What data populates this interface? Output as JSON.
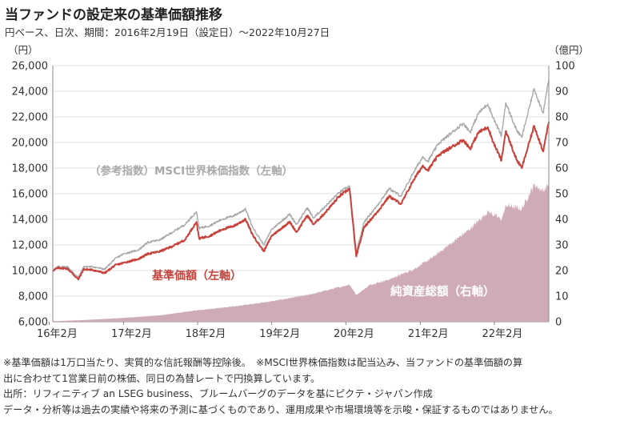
{
  "title": "当ファンドの設定来の基準価額推移",
  "subtitle": "円ベース、日次、期間：2016年2月19日（設定日）～2022年10月27日",
  "chart_data": {
    "type": "line",
    "left_unit": "（円）",
    "right_unit": "（億円）",
    "y_left": {
      "min": 6000,
      "max": 26000,
      "ticks": [
        "6,000",
        "8,000",
        "10,000",
        "12,000",
        "14,000",
        "16,000",
        "18,000",
        "20,000",
        "22,000",
        "24,000",
        "26,000"
      ]
    },
    "y_right": {
      "min": 0,
      "max": 100,
      "ticks": [
        "0",
        "10",
        "20",
        "30",
        "40",
        "50",
        "60",
        "70",
        "80",
        "90",
        "100"
      ]
    },
    "x_ticks": [
      "16年2月",
      "17年2月",
      "18年2月",
      "19年2月",
      "20年2月",
      "21年2月",
      "22年2月"
    ],
    "x_range": [
      "2016-02-19",
      "2022-10-27"
    ],
    "series": [
      {
        "name": "基準価額（左軸）",
        "axis": "left",
        "color": "#c8413a",
        "points": [
          [
            "2016-02-19",
            10000
          ],
          [
            "2016-03-15",
            10200
          ],
          [
            "2016-05-01",
            10150
          ],
          [
            "2016-06-24",
            9300
          ],
          [
            "2016-07-20",
            10100
          ],
          [
            "2016-09-01",
            10050
          ],
          [
            "2016-11-01",
            9800
          ],
          [
            "2016-12-20",
            10400
          ],
          [
            "2017-02-01",
            10600
          ],
          [
            "2017-04-15",
            10900
          ],
          [
            "2017-06-01",
            11300
          ],
          [
            "2017-08-01",
            11500
          ],
          [
            "2017-10-01",
            11900
          ],
          [
            "2017-12-01",
            12400
          ],
          [
            "2018-01-26",
            13800
          ],
          [
            "2018-02-09",
            12500
          ],
          [
            "2018-04-01",
            12700
          ],
          [
            "2018-06-01",
            13200
          ],
          [
            "2018-08-01",
            13500
          ],
          [
            "2018-09-25",
            14000
          ],
          [
            "2018-10-29",
            12800
          ],
          [
            "2018-12-24",
            11500
          ],
          [
            "2019-01-31",
            12700
          ],
          [
            "2019-04-30",
            13800
          ],
          [
            "2019-06-03",
            13000
          ],
          [
            "2019-07-26",
            14300
          ],
          [
            "2019-08-26",
            13600
          ],
          [
            "2019-10-15",
            14400
          ],
          [
            "2019-12-31",
            15800
          ],
          [
            "2020-02-19",
            16400
          ],
          [
            "2020-03-23",
            11100
          ],
          [
            "2020-05-01",
            13400
          ],
          [
            "2020-07-01",
            14500
          ],
          [
            "2020-09-01",
            15800
          ],
          [
            "2020-10-30",
            15200
          ],
          [
            "2020-12-31",
            17100
          ],
          [
            "2021-02-15",
            18200
          ],
          [
            "2021-03-10",
            17800
          ],
          [
            "2021-05-01",
            19000
          ],
          [
            "2021-07-01",
            19600
          ],
          [
            "2021-09-01",
            20200
          ],
          [
            "2021-10-05",
            19500
          ],
          [
            "2021-11-15",
            20800
          ],
          [
            "2021-12-31",
            21200
          ],
          [
            "2022-01-27",
            20000
          ],
          [
            "2022-03-08",
            18600
          ],
          [
            "2022-03-29",
            20900
          ],
          [
            "2022-05-20",
            18700
          ],
          [
            "2022-06-16",
            18000
          ],
          [
            "2022-08-16",
            21300
          ],
          [
            "2022-09-29",
            19300
          ],
          [
            "2022-10-27",
            21600
          ]
        ]
      },
      {
        "name": "（参考指数）MSCI世界株価指数（左軸）",
        "axis": "left",
        "color": "#a9a9a9",
        "points": [
          [
            "2016-02-19",
            10000
          ],
          [
            "2016-03-15",
            10300
          ],
          [
            "2016-05-01",
            10300
          ],
          [
            "2016-06-24",
            9450
          ],
          [
            "2016-07-20",
            10300
          ],
          [
            "2016-09-01",
            10300
          ],
          [
            "2016-11-01",
            10100
          ],
          [
            "2016-12-20",
            10900
          ],
          [
            "2017-02-01",
            11300
          ],
          [
            "2017-04-15",
            11600
          ],
          [
            "2017-06-01",
            12200
          ],
          [
            "2017-08-01",
            12400
          ],
          [
            "2017-10-01",
            13000
          ],
          [
            "2017-12-01",
            13600
          ],
          [
            "2018-01-26",
            14600
          ],
          [
            "2018-02-09",
            13300
          ],
          [
            "2018-04-01",
            13500
          ],
          [
            "2018-06-01",
            14000
          ],
          [
            "2018-08-01",
            14300
          ],
          [
            "2018-09-25",
            14800
          ],
          [
            "2018-10-29",
            13400
          ],
          [
            "2018-12-24",
            12000
          ],
          [
            "2019-01-31",
            13200
          ],
          [
            "2019-04-30",
            14400
          ],
          [
            "2019-06-03",
            13600
          ],
          [
            "2019-07-26",
            14900
          ],
          [
            "2019-08-26",
            14100
          ],
          [
            "2019-10-15",
            14900
          ],
          [
            "2019-12-31",
            16100
          ],
          [
            "2020-02-19",
            16600
          ],
          [
            "2020-03-23",
            11400
          ],
          [
            "2020-05-01",
            13800
          ],
          [
            "2020-07-01",
            15000
          ],
          [
            "2020-09-01",
            16400
          ],
          [
            "2020-10-30",
            15800
          ],
          [
            "2020-12-31",
            17700
          ],
          [
            "2021-02-15",
            18900
          ],
          [
            "2021-03-10",
            18500
          ],
          [
            "2021-05-01",
            19900
          ],
          [
            "2021-07-01",
            20700
          ],
          [
            "2021-09-01",
            21500
          ],
          [
            "2021-10-05",
            20800
          ],
          [
            "2021-11-15",
            22300
          ],
          [
            "2021-12-31",
            23000
          ],
          [
            "2022-01-27",
            21900
          ],
          [
            "2022-03-08",
            20500
          ],
          [
            "2022-03-29",
            23100
          ],
          [
            "2022-05-20",
            21000
          ],
          [
            "2022-06-16",
            20400
          ],
          [
            "2022-08-16",
            24200
          ],
          [
            "2022-09-29",
            22300
          ],
          [
            "2022-10-27",
            24900
          ]
        ]
      },
      {
        "name": "純資産総額（右軸）",
        "axis": "right",
        "type": "area",
        "color": "#cfaab8",
        "points": [
          [
            "2016-02-19",
            0.2
          ],
          [
            "2016-08-01",
            0.7
          ],
          [
            "2017-02-01",
            1.5
          ],
          [
            "2017-08-01",
            2.5
          ],
          [
            "2018-02-01",
            4.5
          ],
          [
            "2018-08-01",
            6.0
          ],
          [
            "2019-02-01",
            8.0
          ],
          [
            "2019-08-01",
            10.5
          ],
          [
            "2020-02-19",
            14.5
          ],
          [
            "2020-03-23",
            10.5
          ],
          [
            "2020-06-01",
            14.5
          ],
          [
            "2020-09-01",
            16.5
          ],
          [
            "2021-01-01",
            20.5
          ],
          [
            "2021-04-01",
            25.0
          ],
          [
            "2021-07-01",
            30.5
          ],
          [
            "2021-10-01",
            36.0
          ],
          [
            "2022-01-01",
            43.0
          ],
          [
            "2022-03-08",
            40.0
          ],
          [
            "2022-04-01",
            45.5
          ],
          [
            "2022-06-16",
            44.0
          ],
          [
            "2022-08-16",
            53.5
          ],
          [
            "2022-09-29",
            51.0
          ],
          [
            "2022-10-27",
            54.0
          ]
        ]
      }
    ],
    "annotations": [
      {
        "text": "（参考指数）MSCI世界株価指数（左軸）",
        "color": "#a9a9a9"
      },
      {
        "text": "基準価額（左軸）",
        "color": "#c8413a"
      },
      {
        "text": "純資産総額（右軸）",
        "color": "#ffffff"
      }
    ]
  },
  "notes": [
    "※基準価額は1万口当たり、実質的な信託報酬等控除後。　※MSCI世界株価指数は配当込み、当ファンドの基準価額の算",
    "出に合わせて1営業日前の株価、同日の為替レートで円換算しています。",
    "出所：リフィニティブ an LSEG business、ブルームバーグのデータを基にピクテ・ジャパン作成",
    "データ・分析等は過去の実績や将来の予測に基づくものであり、運用成果や市場環境等を示唆・保証するものではありません。"
  ]
}
